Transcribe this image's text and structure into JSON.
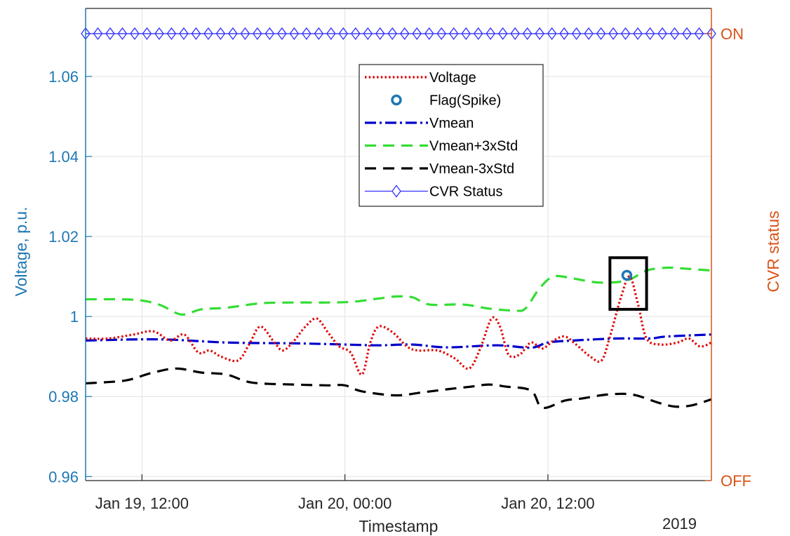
{
  "chart_data": {
    "type": "line",
    "xlabel": "Timestamp",
    "ylabel_left": "Voltage, p.u.",
    "ylabel_right": "CVR status",
    "year_label": "2019",
    "x_range": [
      "2019-01-19T08:40",
      "2019-01-20T21:40"
    ],
    "x_ticks": [
      {
        "t": "2019-01-19T12:00",
        "label": "Jan 19, 12:00"
      },
      {
        "t": "2019-01-20T00:00",
        "label": "Jan 20, 00:00"
      },
      {
        "t": "2019-01-20T12:00",
        "label": "Jan 20, 12:00"
      }
    ],
    "ylim_left": [
      0.959,
      1.077
    ],
    "y_ticks_left": [
      "0.96",
      "0.98",
      "1",
      "1.02",
      "1.04",
      "1.06"
    ],
    "y_ticks_right": [
      "OFF",
      "ON"
    ],
    "grid": true,
    "legend_position": "top-center",
    "colors": {
      "left_axis": "#1f77b4",
      "right_axis": "#d95319",
      "voltage": "#e00000",
      "flag": "#1f77b4",
      "vmean": "#0000cc",
      "vmean_plus": "#33dd33",
      "vmean_minus": "#000000",
      "cvr": "#3333ff",
      "grid": "#e2e2e2"
    },
    "series": [
      {
        "name": "Voltage",
        "style": "dotted",
        "points": [
          [
            "2019-01-19T08:40",
            0.9945
          ],
          [
            "2019-01-19T10:00",
            0.9945
          ],
          [
            "2019-01-19T11:30",
            0.9955
          ],
          [
            "2019-01-19T12:40",
            0.9963
          ],
          [
            "2019-01-19T13:40",
            0.994
          ],
          [
            "2019-01-19T14:30",
            0.9955
          ],
          [
            "2019-01-19T15:20",
            0.991
          ],
          [
            "2019-01-19T16:00",
            0.9915
          ],
          [
            "2019-01-19T16:40",
            0.99
          ],
          [
            "2019-01-19T17:40",
            0.989
          ],
          [
            "2019-01-19T18:20",
            0.993
          ],
          [
            "2019-01-19T19:00",
            0.9975
          ],
          [
            "2019-01-19T19:50",
            0.9935
          ],
          [
            "2019-01-19T20:20",
            0.9915
          ],
          [
            "2019-01-19T21:00",
            0.994
          ],
          [
            "2019-01-19T21:40",
            0.9975
          ],
          [
            "2019-01-19T22:20",
            0.9995
          ],
          [
            "2019-01-19T23:00",
            0.996
          ],
          [
            "2019-01-19T23:40",
            0.9925
          ],
          [
            "2019-01-20T00:20",
            0.991
          ],
          [
            "2019-01-20T01:00",
            0.9855
          ],
          [
            "2019-01-20T01:30",
            0.9935
          ],
          [
            "2019-01-20T02:00",
            0.9975
          ],
          [
            "2019-01-20T02:50",
            0.996
          ],
          [
            "2019-01-20T03:40",
            0.9925
          ],
          [
            "2019-01-20T04:20",
            0.9915
          ],
          [
            "2019-01-20T05:30",
            0.9915
          ],
          [
            "2019-01-20T06:30",
            0.9895
          ],
          [
            "2019-01-20T07:20",
            0.987
          ],
          [
            "2019-01-20T08:00",
            0.992
          ],
          [
            "2019-01-20T08:40",
            0.9995
          ],
          [
            "2019-01-20T09:10",
            0.9975
          ],
          [
            "2019-01-20T09:40",
            0.9905
          ],
          [
            "2019-01-20T10:20",
            0.9905
          ],
          [
            "2019-01-20T11:00",
            0.9935
          ],
          [
            "2019-01-20T11:40",
            0.992
          ],
          [
            "2019-01-20T12:20",
            0.994
          ],
          [
            "2019-01-20T13:00",
            0.995
          ],
          [
            "2019-01-20T13:40",
            0.993
          ],
          [
            "2019-01-20T14:30",
            0.99
          ],
          [
            "2019-01-20T15:10",
            0.989
          ],
          [
            "2019-01-20T15:40",
            0.995
          ],
          [
            "2019-01-20T16:20",
            1.005
          ],
          [
            "2019-01-20T16:50",
            1.01
          ],
          [
            "2019-01-20T17:20",
            1.003
          ],
          [
            "2019-01-20T17:50",
            0.9945
          ],
          [
            "2019-01-20T18:40",
            0.993
          ],
          [
            "2019-01-20T19:40",
            0.9935
          ],
          [
            "2019-01-20T20:20",
            0.9945
          ],
          [
            "2019-01-20T21:00",
            0.9925
          ],
          [
            "2019-01-20T21:40",
            0.9935
          ]
        ]
      },
      {
        "name": "Flag(Spike)",
        "style": "circle-marker",
        "points": [
          [
            "2019-01-20T16:40",
            1.0103
          ]
        ]
      },
      {
        "name": "Vmean",
        "style": "dash-dot",
        "points": [
          [
            "2019-01-19T08:40",
            0.994
          ],
          [
            "2019-01-19T13:00",
            0.9943
          ],
          [
            "2019-01-19T17:00",
            0.9935
          ],
          [
            "2019-01-19T21:00",
            0.9933
          ],
          [
            "2019-01-20T00:00",
            0.993
          ],
          [
            "2019-01-20T02:00",
            0.9928
          ],
          [
            "2019-01-20T04:00",
            0.993
          ],
          [
            "2019-01-20T06:00",
            0.9923
          ],
          [
            "2019-01-20T09:00",
            0.9928
          ],
          [
            "2019-01-20T11:00",
            0.9922
          ],
          [
            "2019-01-20T12:00",
            0.9935
          ],
          [
            "2019-01-20T13:30",
            0.994
          ],
          [
            "2019-01-20T16:00",
            0.9945
          ],
          [
            "2019-01-20T18:00",
            0.9945
          ],
          [
            "2019-01-20T19:00",
            0.995
          ],
          [
            "2019-01-20T21:40",
            0.9955
          ]
        ]
      },
      {
        "name": "Vmean+3xStd",
        "style": "dashed",
        "points": [
          [
            "2019-01-19T08:40",
            1.0043
          ],
          [
            "2019-01-19T11:30",
            1.0042
          ],
          [
            "2019-01-19T13:00",
            1.003
          ],
          [
            "2019-01-19T14:20",
            1.0005
          ],
          [
            "2019-01-19T15:30",
            1.0018
          ],
          [
            "2019-01-19T17:00",
            1.0022
          ],
          [
            "2019-01-19T19:00",
            1.0033
          ],
          [
            "2019-01-19T21:00",
            1.0035
          ],
          [
            "2019-01-19T23:00",
            1.0035
          ],
          [
            "2019-01-20T00:30",
            1.0037
          ],
          [
            "2019-01-20T02:00",
            1.0045
          ],
          [
            "2019-01-20T03:00",
            1.005
          ],
          [
            "2019-01-20T04:00",
            1.0048
          ],
          [
            "2019-01-20T05:00",
            1.003
          ],
          [
            "2019-01-20T07:00",
            1.003
          ],
          [
            "2019-01-20T08:30",
            1.002
          ],
          [
            "2019-01-20T10:00",
            1.0015
          ],
          [
            "2019-01-20T10:40",
            1.002
          ],
          [
            "2019-01-20T11:30",
            1.007
          ],
          [
            "2019-01-20T12:20",
            1.01
          ],
          [
            "2019-01-20T13:30",
            1.0095
          ],
          [
            "2019-01-20T15:00",
            1.0085
          ],
          [
            "2019-01-20T16:40",
            1.009
          ],
          [
            "2019-01-20T17:50",
            1.0115
          ],
          [
            "2019-01-20T19:00",
            1.0122
          ],
          [
            "2019-01-20T20:00",
            1.012
          ],
          [
            "2019-01-20T21:40",
            1.0115
          ]
        ]
      },
      {
        "name": "Vmean-3xStd",
        "style": "dashed",
        "points": [
          [
            "2019-01-19T08:40",
            0.9833
          ],
          [
            "2019-01-19T11:00",
            0.984
          ],
          [
            "2019-01-19T12:30",
            0.9858
          ],
          [
            "2019-01-19T14:00",
            0.987
          ],
          [
            "2019-01-19T15:30",
            0.986
          ],
          [
            "2019-01-19T17:00",
            0.9855
          ],
          [
            "2019-01-19T18:30",
            0.9835
          ],
          [
            "2019-01-19T21:00",
            0.983
          ],
          [
            "2019-01-19T23:00",
            0.9828
          ],
          [
            "2019-01-20T00:00",
            0.9828
          ],
          [
            "2019-01-20T01:00",
            0.9813
          ],
          [
            "2019-01-20T03:00",
            0.9803
          ],
          [
            "2019-01-20T04:30",
            0.981
          ],
          [
            "2019-01-20T06:00",
            0.9818
          ],
          [
            "2019-01-20T07:30",
            0.9825
          ],
          [
            "2019-01-20T08:30",
            0.983
          ],
          [
            "2019-01-20T09:30",
            0.9825
          ],
          [
            "2019-01-20T11:00",
            0.9815
          ],
          [
            "2019-01-20T11:40",
            0.9772
          ],
          [
            "2019-01-20T13:00",
            0.979
          ],
          [
            "2019-01-20T14:00",
            0.9795
          ],
          [
            "2019-01-20T15:30",
            0.9805
          ],
          [
            "2019-01-20T17:00",
            0.9805
          ],
          [
            "2019-01-20T18:30",
            0.9785
          ],
          [
            "2019-01-20T19:30",
            0.9775
          ],
          [
            "2019-01-20T20:30",
            0.9778
          ],
          [
            "2019-01-20T21:40",
            0.9793
          ]
        ]
      }
    ],
    "cvr_status": {
      "name": "CVR Status",
      "style": "line-diamond",
      "value": "ON",
      "marker_count": 52
    },
    "annotations": [
      {
        "type": "box",
        "x_range": [
          "2019-01-20T15:40",
          "2019-01-20T17:50"
        ],
        "y_range": [
          1.0018,
          1.0147
        ]
      }
    ]
  }
}
